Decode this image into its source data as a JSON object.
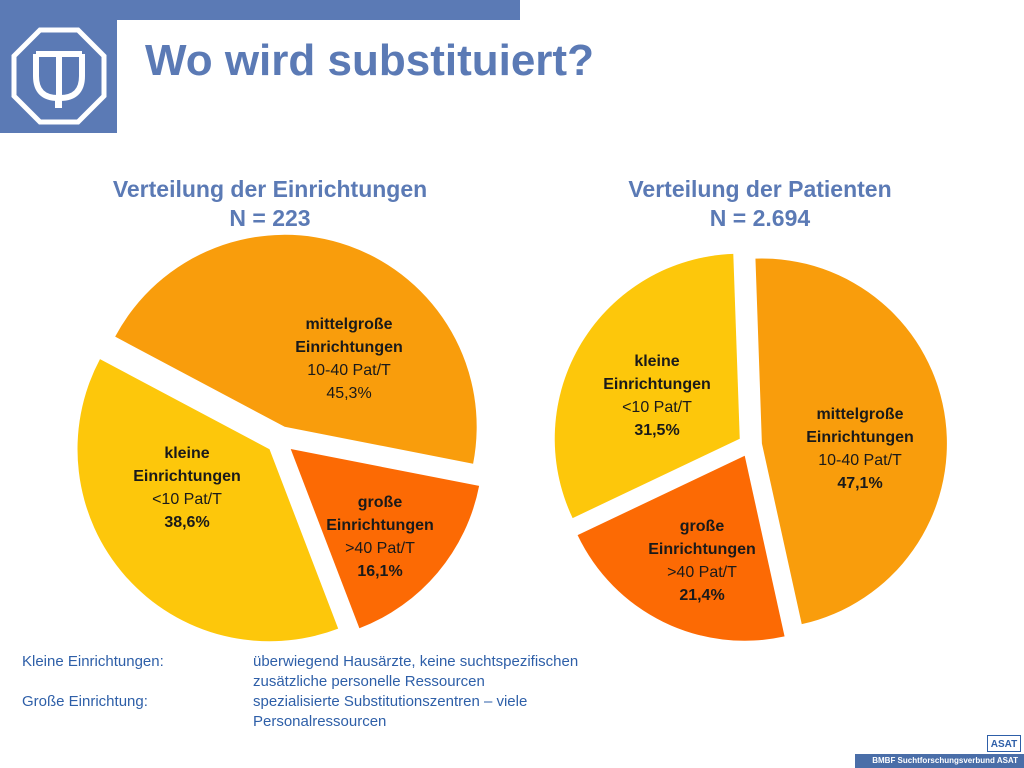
{
  "title": "Wo wird substituiert?",
  "chart_data": [
    {
      "type": "pie",
      "title_line1": "Verteilung der Einrichtungen",
      "title_line2": "N = 223",
      "slices": [
        {
          "name_line1": "mittelgroße",
          "name_line2": "Einrichtungen",
          "range": "10-40 Pat/T",
          "value": 45.3,
          "value_label": "45,3%",
          "color": "#f99d0c"
        },
        {
          "name_line1": "große",
          "name_line2": "Einrichtungen",
          "range": ">40 Pat/T",
          "value": 16.1,
          "value_label": "16,1%",
          "color": "#fc6a04"
        },
        {
          "name_line1": "kleine",
          "name_line2": "Einrichtungen",
          "range": "<10 Pat/T",
          "value": 38.6,
          "value_label": "38,6%",
          "color": "#fdc70b"
        }
      ]
    },
    {
      "type": "pie",
      "title_line1": "Verteilung der Patienten",
      "title_line2": "N = 2.694",
      "slices": [
        {
          "name_line1": "mittelgroße",
          "name_line2": "Einrichtungen",
          "range": "10-40 Pat/T",
          "value": 47.1,
          "value_label": "47,1%",
          "color": "#f99d0c"
        },
        {
          "name_line1": "große",
          "name_line2": "Einrichtungen",
          "range": ">40 Pat/T",
          "value": 21.4,
          "value_label": "21,4%",
          "color": "#fc6a04"
        },
        {
          "name_line1": "kleine",
          "name_line2": "Einrichtungen",
          "range": "<10 Pat/T",
          "value": 31.5,
          "value_label": "31,5%",
          "color": "#fdc70b"
        }
      ]
    }
  ],
  "notes": [
    {
      "key": "Kleine Einrichtungen:",
      "value_line1": "überwiegend Hausärzte, keine suchtspezifischen",
      "value_line2": "zusätzliche personelle Ressourcen"
    },
    {
      "key": "Große Einrichtung:",
      "value_line1": "spezialisierte Substitutionszentren – viele",
      "value_line2": "Personalressourcen"
    }
  ],
  "footer": "BMBF Suchtforschungsverbund ASAT",
  "footer_logo": "ASAT"
}
